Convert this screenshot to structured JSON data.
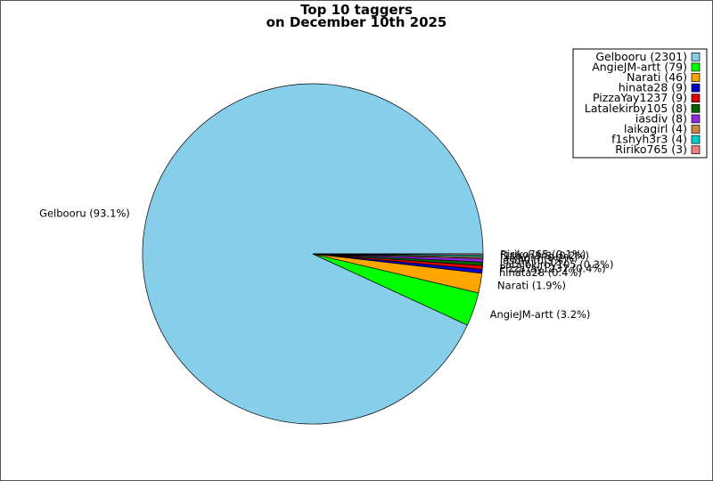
{
  "chart_data": {
    "type": "pie",
    "title_line1": "Top 10 taggers",
    "title_line2": "on December 10th 2025",
    "start_angle_deg": 0,
    "direction": "counterclockwise",
    "legend_placement": "top-right",
    "slices": [
      {
        "name": "Gelbooru",
        "value": 2301,
        "color": "#87ceeb",
        "legend": "Gelbooru (2301)",
        "label": "Gelbooru (93.1%)"
      },
      {
        "name": "AngieJM-artt",
        "value": 79,
        "color": "#00ff00",
        "legend": "AngieJM-artt (79)",
        "label": "AngieJM-artt (3.2%)"
      },
      {
        "name": "Narati",
        "value": 46,
        "color": "#ffa500",
        "legend": "Narati (46)",
        "label": "Narati (1.9%)"
      },
      {
        "name": "hinata28",
        "value": 9,
        "color": "#0000cd",
        "legend": "hinata28 (9)",
        "label": "hinata28 (0.4%)"
      },
      {
        "name": "PizzaYay1237",
        "value": 9,
        "color": "#dd0000",
        "legend": "PizzaYay1237 (9)",
        "label": "PizzaYay1237 (0.4%)"
      },
      {
        "name": "Latalekirby105",
        "value": 8,
        "color": "#006400",
        "legend": "Latalekirby105 (8)",
        "label": "Latalekirby105 (0.3%)"
      },
      {
        "name": "iasdiv",
        "value": 8,
        "color": "#8a2be2",
        "legend": "iasdiv (8)",
        "label": "iasdiv (0.3%)"
      },
      {
        "name": "laikagirl",
        "value": 4,
        "color": "#cd853f",
        "legend": "laikagirl (4)",
        "label": "laikagirl (0.2%)"
      },
      {
        "name": "f1shyh3r3",
        "value": 4,
        "color": "#00ced1",
        "legend": "f1shyh3r3 (4)",
        "label": "f1shyh3r3 (0.2%)"
      },
      {
        "name": "Ririko765",
        "value": 3,
        "color": "#f08080",
        "legend": "Ririko765 (3)",
        "label": "Ririko765 (0.1%)"
      }
    ]
  }
}
